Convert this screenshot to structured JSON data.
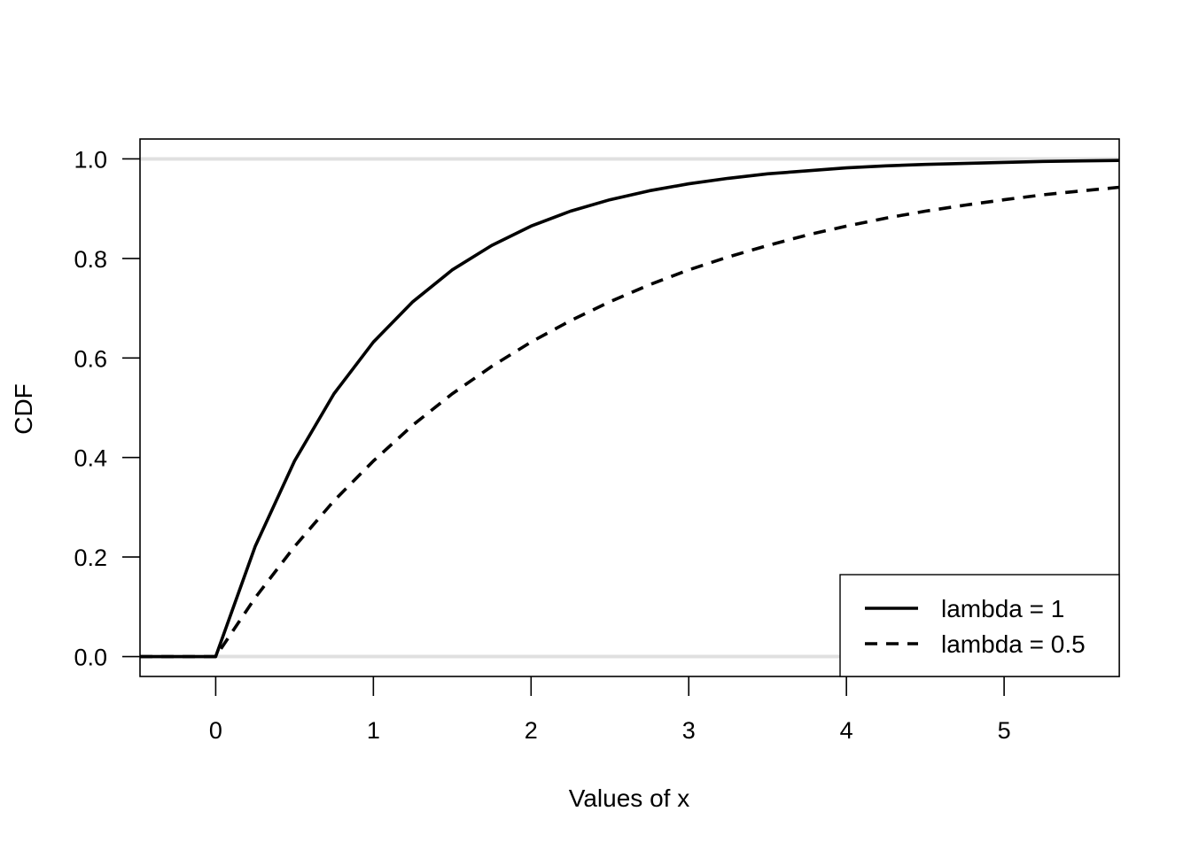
{
  "chart_data": {
    "type": "line",
    "title": "",
    "xlabel": "Values of x",
    "ylabel": "CDF",
    "xlim": [
      -0.48,
      5.73
    ],
    "ylim": [
      -0.04,
      1.04
    ],
    "x_ticks": [
      "0",
      "1",
      "2",
      "3",
      "4",
      "5"
    ],
    "y_ticks": [
      "0.0",
      "0.2",
      "0.4",
      "0.6",
      "0.8",
      "1.0"
    ],
    "reference_lines": [
      0,
      1
    ],
    "reference_line_color": "#e0e0e0",
    "grid": false,
    "legend_position": "bottom-right",
    "x": [
      -0.48,
      -0.25,
      0,
      0.25,
      0.5,
      0.75,
      1,
      1.25,
      1.5,
      1.75,
      2,
      2.25,
      2.5,
      2.75,
      3,
      3.25,
      3.5,
      3.75,
      4,
      4.25,
      4.5,
      4.75,
      5,
      5.25,
      5.5,
      5.73
    ],
    "series": [
      {
        "name": "lambda = 1",
        "line_style": "solid",
        "color": "#000000",
        "values": [
          0,
          0,
          0,
          0.221,
          0.393,
          0.528,
          0.632,
          0.713,
          0.777,
          0.826,
          0.865,
          0.895,
          0.918,
          0.936,
          0.95,
          0.961,
          0.97,
          0.976,
          0.982,
          0.986,
          0.989,
          0.991,
          0.993,
          0.995,
          0.996,
          0.997
        ]
      },
      {
        "name": "lambda = 0.5",
        "line_style": "dashed",
        "color": "#000000",
        "values": [
          0,
          0,
          0,
          0.118,
          0.221,
          0.313,
          0.393,
          0.465,
          0.528,
          0.583,
          0.632,
          0.675,
          0.713,
          0.747,
          0.777,
          0.803,
          0.826,
          0.847,
          0.865,
          0.881,
          0.895,
          0.907,
          0.918,
          0.928,
          0.936,
          0.943
        ]
      }
    ]
  }
}
